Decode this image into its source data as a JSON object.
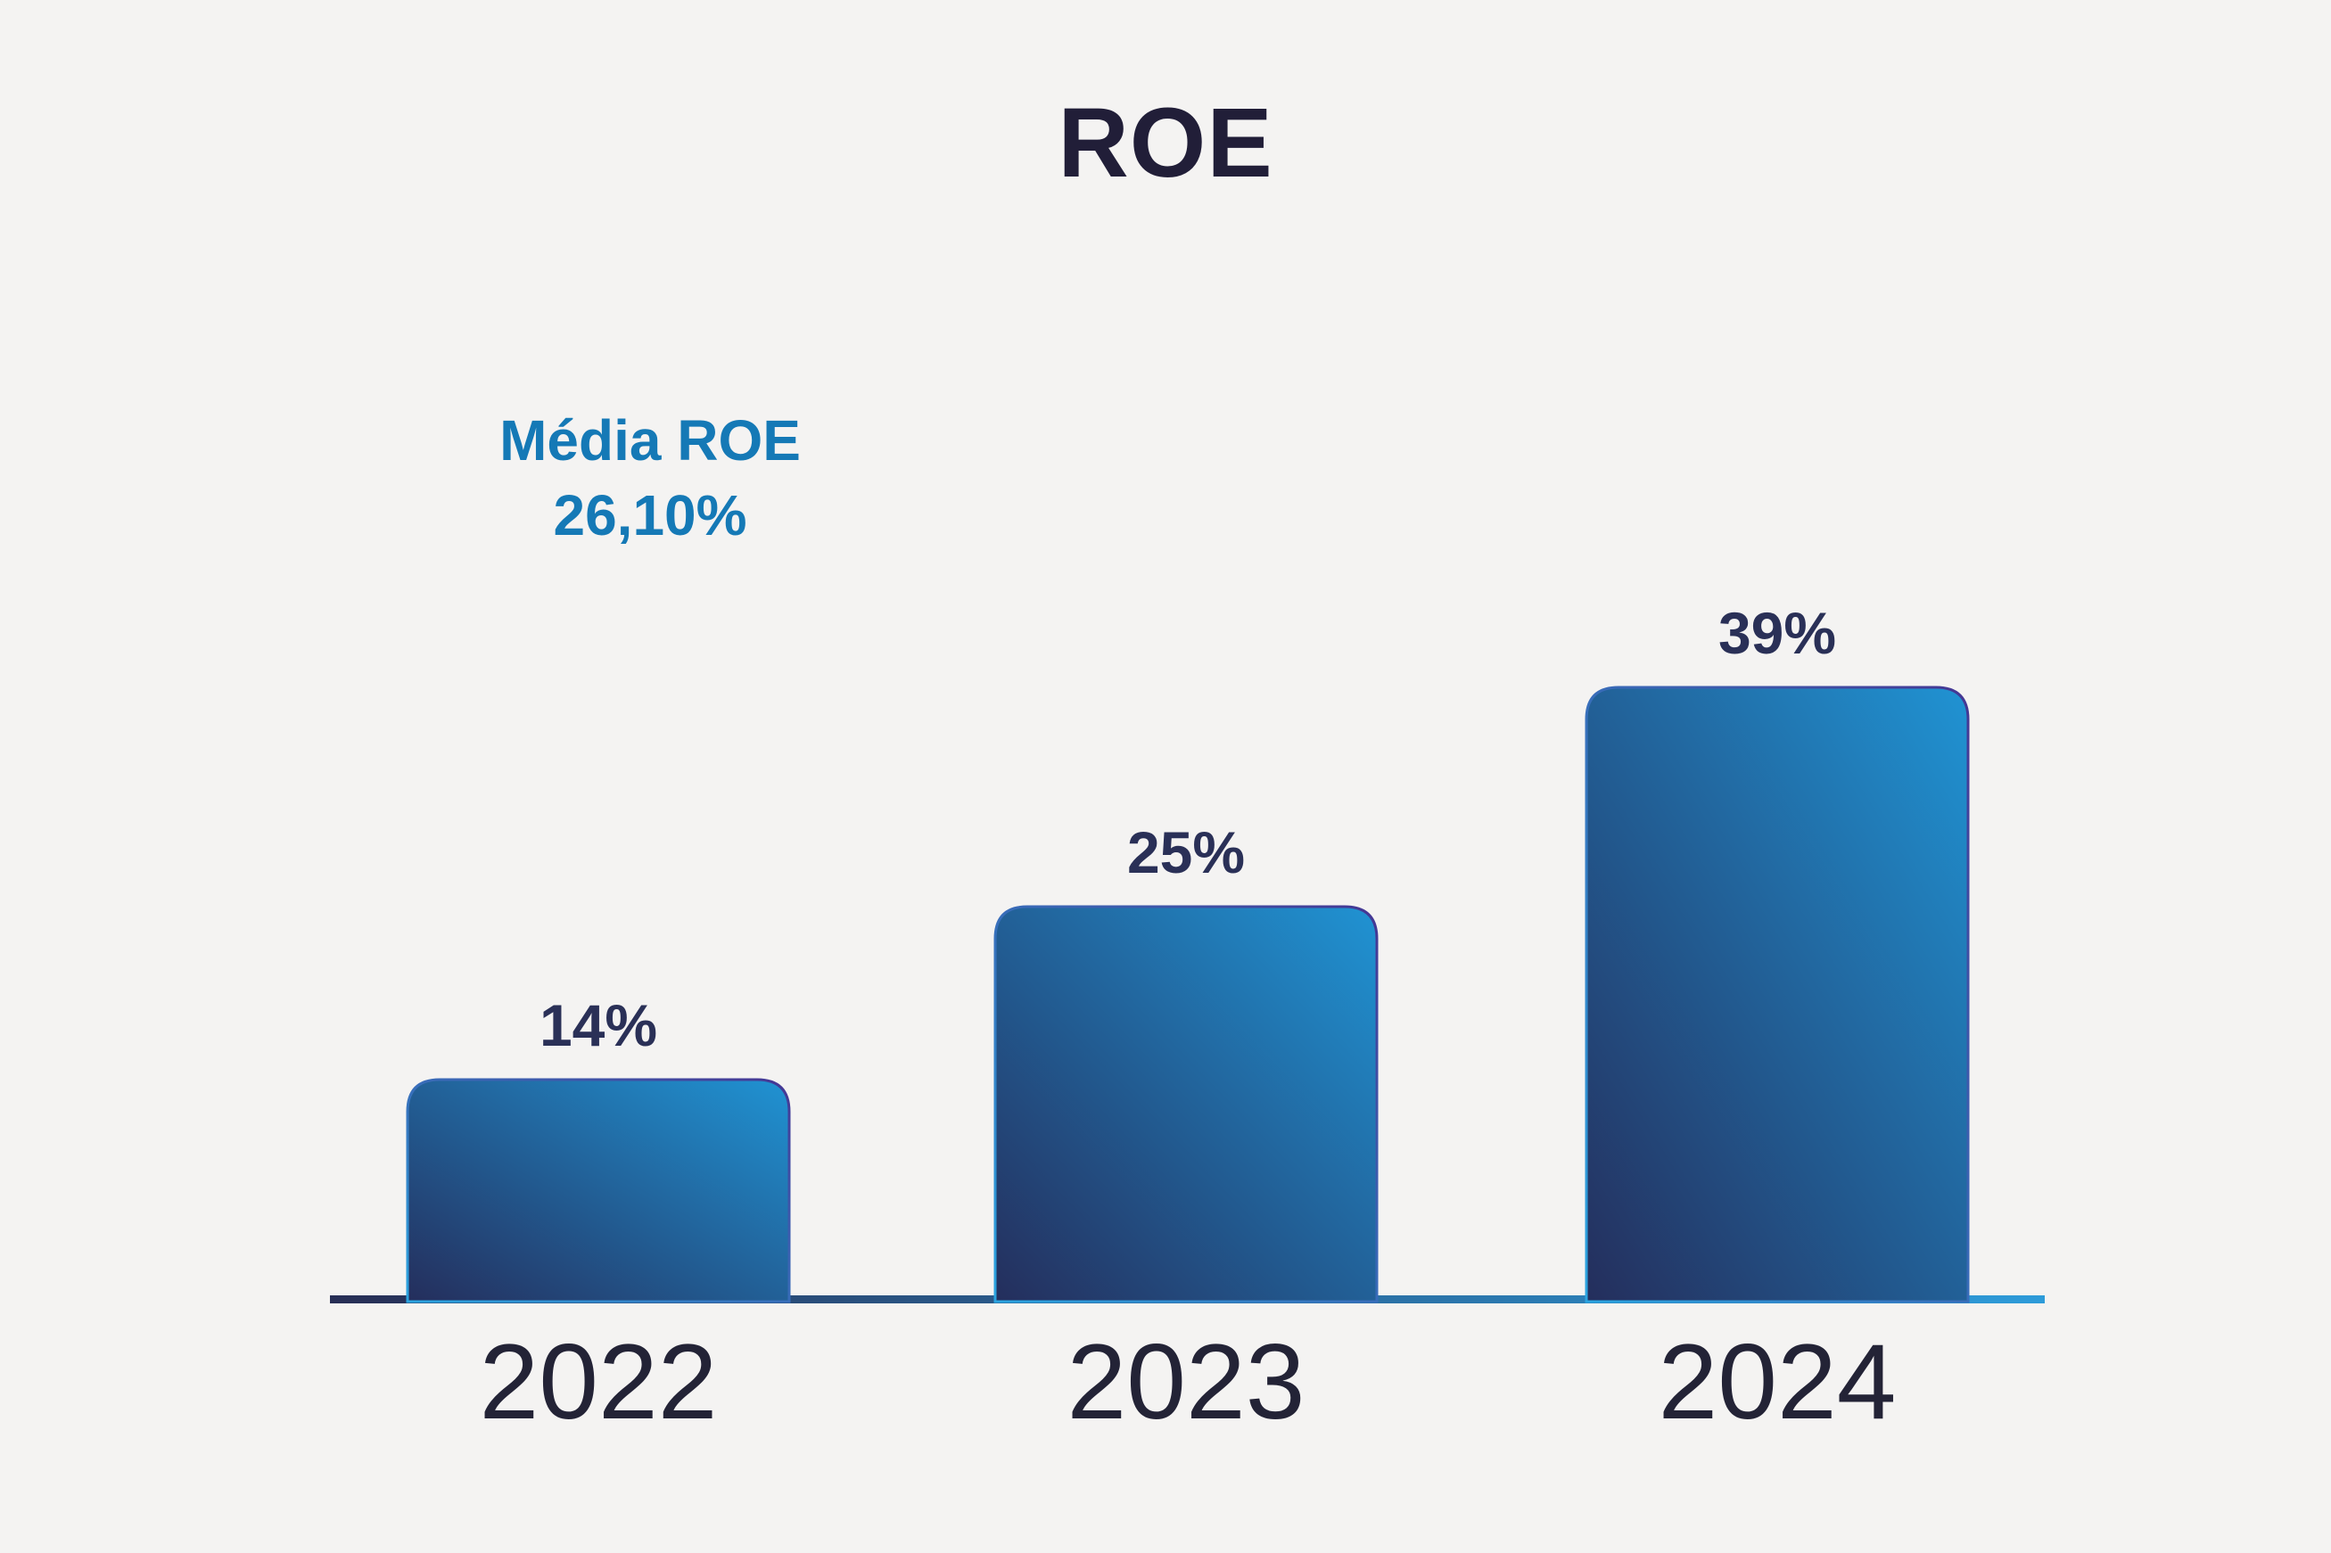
{
  "chart_data": {
    "type": "bar",
    "title": "ROE",
    "categories": [
      "2022",
      "2023",
      "2024"
    ],
    "values": [
      14,
      25,
      39
    ],
    "value_labels": [
      "14%",
      "25%",
      "39%"
    ],
    "annotation": {
      "line1": "Média ROE",
      "line2": "26,10%"
    },
    "xlabel": "",
    "ylabel": "",
    "ylim": [
      0,
      40
    ],
    "grid": false,
    "legend": "none",
    "bar_labels_position": "above",
    "baseline_axis": "x"
  },
  "colors": {
    "background": "#f4f3f2",
    "title": "#211e38",
    "value_label": "#2a3057",
    "year_label": "#232336",
    "annotation_blue": "#1579b6",
    "bar_gradient_start": "#242e5c",
    "bar_gradient_end": "#2093d3",
    "bar_stroke_start": "#2ba4e0",
    "bar_stroke_end": "#453693",
    "axis_gradient_start": "#272e55",
    "axis_gradient_end": "#2d9bd9"
  }
}
